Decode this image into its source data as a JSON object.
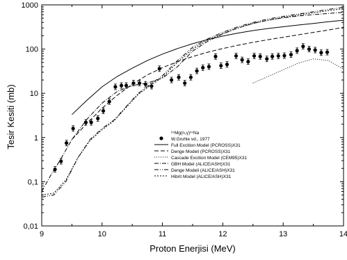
{
  "chart_data": {
    "type": "line",
    "title": "",
    "xlabel": "Proton Enerjisi (MeV)",
    "ylabel": "Tesir Kesiti (mb)",
    "x_scale": "linear",
    "y_scale": "log",
    "xlim": [
      9,
      14
    ],
    "ylim": [
      0.01,
      1000
    ],
    "x_ticks": [
      "9",
      "10",
      "11",
      "12",
      "13",
      "14"
    ],
    "y_ticks": [
      "0,01",
      "0,1",
      "1",
      "10",
      "100",
      "1000"
    ],
    "y_tick_values": [
      0.01,
      0.1,
      1,
      10,
      100,
      1000
    ],
    "grid": false,
    "legend_position": "center-right",
    "legend_reaction": "²⁴Mg(n,γ)²⁴Na",
    "series": [
      {
        "name": "W.Gruhle vd., 1977",
        "style": "markers",
        "color": "#000000",
        "points": [
          [
            9.22,
            0.19
          ],
          [
            9.32,
            0.29
          ],
          [
            9.41,
            0.75
          ],
          [
            9.52,
            1.6
          ],
          [
            9.73,
            2.2
          ],
          [
            9.82,
            2.2
          ],
          [
            9.93,
            2.7
          ],
          [
            10.02,
            4.0
          ],
          [
            10.12,
            6.5
          ],
          [
            10.22,
            14
          ],
          [
            10.32,
            15
          ],
          [
            10.4,
            15
          ],
          [
            10.52,
            17
          ],
          [
            10.62,
            17
          ],
          [
            10.72,
            16
          ],
          [
            10.82,
            14.5
          ],
          [
            10.95,
            36
          ],
          [
            11.15,
            20
          ],
          [
            11.27,
            23
          ],
          [
            11.37,
            17
          ],
          [
            11.47,
            23
          ],
          [
            11.57,
            32
          ],
          [
            11.67,
            38
          ],
          [
            11.77,
            40
          ],
          [
            11.88,
            68
          ],
          [
            11.97,
            42
          ],
          [
            12.07,
            45
          ],
          [
            12.22,
            70
          ],
          [
            12.32,
            57
          ],
          [
            12.42,
            52
          ],
          [
            12.52,
            70
          ],
          [
            12.62,
            68
          ],
          [
            12.73,
            60
          ],
          [
            12.82,
            68
          ],
          [
            12.92,
            70
          ],
          [
            13.02,
            71
          ],
          [
            13.13,
            75
          ],
          [
            13.23,
            92
          ],
          [
            13.33,
            115
          ],
          [
            13.43,
            100
          ],
          [
            13.53,
            95
          ],
          [
            13.63,
            83
          ],
          [
            13.73,
            85
          ]
        ]
      },
      {
        "name": "Full Excition Model (PCROSS)X31",
        "style": "solid",
        "color": "#000000",
        "points": [
          [
            9.5,
            3.3
          ],
          [
            9.75,
            7
          ],
          [
            10.0,
            14
          ],
          [
            10.25,
            24
          ],
          [
            10.5,
            37
          ],
          [
            10.75,
            55
          ],
          [
            11.0,
            77
          ],
          [
            11.25,
            103
          ],
          [
            11.5,
            132
          ],
          [
            11.75,
            164
          ],
          [
            12.0,
            197
          ],
          [
            12.25,
            230
          ],
          [
            12.5,
            262
          ],
          [
            12.75,
            292
          ],
          [
            13.0,
            320
          ],
          [
            13.25,
            350
          ],
          [
            13.5,
            380
          ],
          [
            13.75,
            415
          ],
          [
            14.0,
            450
          ]
        ]
      },
      {
        "name": "Denge Modeli (PCROSS)X31",
        "style": "dashed",
        "color": "#000000",
        "points": [
          [
            9.5,
            0.9
          ],
          [
            9.75,
            2.1
          ],
          [
            10.0,
            4.6
          ],
          [
            10.25,
            9
          ],
          [
            10.5,
            16
          ],
          [
            10.75,
            26
          ],
          [
            11.0,
            38
          ],
          [
            11.25,
            52
          ],
          [
            11.5,
            68
          ],
          [
            11.75,
            85
          ],
          [
            12.0,
            103
          ],
          [
            12.25,
            122
          ],
          [
            12.5,
            142
          ],
          [
            12.75,
            163
          ],
          [
            13.0,
            185
          ],
          [
            13.25,
            210
          ],
          [
            13.5,
            238
          ],
          [
            13.75,
            270
          ],
          [
            14.0,
            310
          ]
        ]
      },
      {
        "name": "Cascade Excition Model (CEM95)X31",
        "style": "dotted",
        "color": "#000000",
        "points": [
          [
            12.5,
            17
          ],
          [
            12.75,
            24
          ],
          [
            13.0,
            34
          ],
          [
            13.25,
            48
          ],
          [
            13.5,
            60
          ],
          [
            13.75,
            55
          ],
          [
            14.0,
            35
          ]
        ]
      },
      {
        "name": "GBH Model (ALICE/ASH)X31",
        "style": "dashdot",
        "color": "#000000",
        "points": [
          [
            9.0,
            0.06
          ],
          [
            9.15,
            0.14
          ],
          [
            9.3,
            0.3
          ],
          [
            9.5,
            0.9
          ],
          [
            9.75,
            2.6
          ],
          [
            10.0,
            6
          ],
          [
            10.25,
            11
          ],
          [
            10.5,
            15
          ],
          [
            10.75,
            17
          ],
          [
            11.0,
            22
          ],
          [
            11.25,
            40
          ],
          [
            11.5,
            90
          ],
          [
            11.75,
            150
          ],
          [
            12.0,
            220
          ],
          [
            12.25,
            300
          ],
          [
            12.5,
            380
          ],
          [
            12.75,
            450
          ],
          [
            13.0,
            510
          ],
          [
            13.25,
            560
          ],
          [
            13.5,
            600
          ],
          [
            13.75,
            640
          ],
          [
            14.0,
            680
          ]
        ]
      },
      {
        "name": "Denge Modeli (ALICE/ASH)X31",
        "style": "dashdotdot",
        "color": "#000000",
        "points": [
          [
            9.0,
            0.045
          ],
          [
            9.2,
            0.05
          ],
          [
            9.4,
            0.1
          ],
          [
            9.6,
            0.35
          ],
          [
            9.8,
            0.9
          ],
          [
            10.0,
            1.6
          ],
          [
            10.2,
            2.5
          ],
          [
            10.4,
            5
          ],
          [
            10.6,
            10
          ],
          [
            10.8,
            16
          ],
          [
            11.0,
            25
          ],
          [
            11.25,
            55
          ],
          [
            11.5,
            110
          ],
          [
            11.75,
            170
          ],
          [
            12.0,
            240
          ],
          [
            12.25,
            320
          ],
          [
            12.5,
            400
          ],
          [
            12.75,
            480
          ],
          [
            13.0,
            550
          ],
          [
            13.25,
            620
          ],
          [
            13.5,
            700
          ],
          [
            13.75,
            790
          ],
          [
            14.0,
            880
          ]
        ]
      },
      {
        "name": "Hibrit Model (ALICE/ASH)X31",
        "style": "shortdash",
        "color": "#000000",
        "points": [
          [
            9.0,
            0.05
          ],
          [
            9.2,
            0.055
          ],
          [
            9.4,
            0.11
          ],
          [
            9.6,
            0.35
          ],
          [
            9.8,
            0.85
          ],
          [
            10.0,
            1.5
          ],
          [
            10.2,
            2.4
          ],
          [
            10.4,
            4.8
          ],
          [
            10.6,
            9.5
          ],
          [
            10.8,
            15
          ],
          [
            11.0,
            23
          ],
          [
            11.25,
            50
          ],
          [
            11.5,
            100
          ],
          [
            11.75,
            160
          ],
          [
            12.0,
            225
          ],
          [
            12.25,
            300
          ],
          [
            12.5,
            380
          ],
          [
            12.75,
            450
          ],
          [
            13.0,
            520
          ],
          [
            13.25,
            590
          ],
          [
            13.5,
            660
          ],
          [
            13.75,
            740
          ],
          [
            14.0,
            820
          ]
        ]
      }
    ]
  }
}
